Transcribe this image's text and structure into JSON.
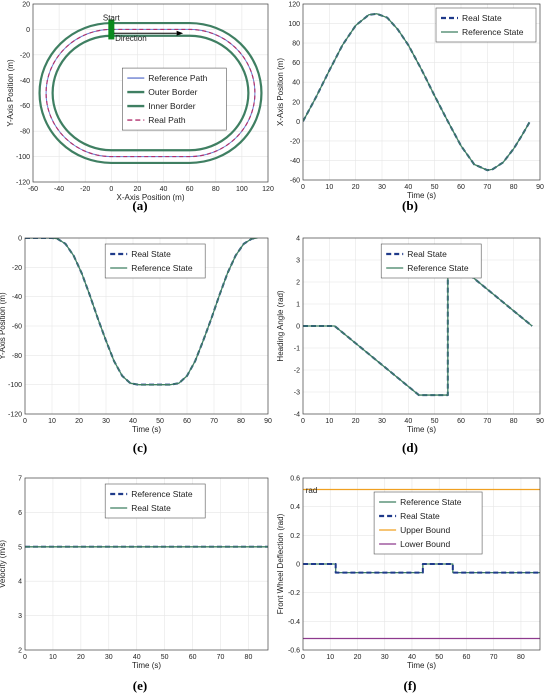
{
  "colors": {
    "real": "#1f3a8a",
    "reference": "#3f7f62",
    "border": "#3f7f62",
    "refpath": "#6a7fd0",
    "realpath": "#b0306e",
    "upper": "#f0a020",
    "lower": "#8e3a8e",
    "start": "#0a8a1e"
  },
  "chart_data": [
    {
      "id": "a",
      "type": "line",
      "panel_label": "(a)",
      "xlabel": "X-Axis Position (m)",
      "ylabel": "Y-Axis Position (m)",
      "xlim": [
        -60,
        120
      ],
      "ylim": [
        -120,
        20
      ],
      "xticks": [
        -60,
        -40,
        -20,
        0,
        20,
        40,
        60,
        80,
        100,
        120
      ],
      "yticks": [
        -120,
        -100,
        -80,
        -60,
        -40,
        -20,
        0,
        20
      ],
      "grid": true,
      "legend_position": "center",
      "annotations": [
        {
          "text": "Start",
          "x": 0,
          "y": 7
        },
        {
          "text": "Direction",
          "x": 15,
          "y": -9
        }
      ],
      "track": {
        "center_radius": 50,
        "outer_radius": 55,
        "inner_radius": 45,
        "straight_x": [
          0,
          60
        ],
        "center_y": -50
      },
      "series": [
        {
          "name": "Reference Path",
          "style": "solid",
          "color_key": "refpath"
        },
        {
          "name": "Outer Border",
          "style": "solid",
          "color_key": "border"
        },
        {
          "name": "Inner Border",
          "style": "solid",
          "color_key": "border"
        },
        {
          "name": "Real Path",
          "style": "dashed",
          "color_key": "realpath"
        }
      ]
    },
    {
      "id": "b",
      "type": "line",
      "panel_label": "(b)",
      "xlabel": "Time (s)",
      "ylabel": "X-Axis Position (m)",
      "xlim": [
        0,
        90
      ],
      "ylim": [
        -60,
        120
      ],
      "xticks": [
        0,
        10,
        20,
        30,
        40,
        50,
        60,
        70,
        80,
        90
      ],
      "yticks": [
        -60,
        -40,
        -20,
        0,
        20,
        40,
        60,
        80,
        100,
        120
      ],
      "grid": true,
      "legend_position": "top-right",
      "series": [
        {
          "name": "Real State",
          "style": "dashed",
          "color_key": "real",
          "x": [
            0,
            5,
            10,
            15,
            20,
            25,
            28,
            32,
            36,
            40,
            45,
            50,
            55,
            60,
            65,
            70,
            72,
            76,
            80,
            83,
            86
          ],
          "y": [
            0,
            25,
            52,
            78,
            98,
            109,
            110,
            106,
            94,
            78,
            53,
            26,
            0,
            -25,
            -44,
            -50,
            -49,
            -42,
            -28,
            -15,
            -1
          ]
        },
        {
          "name": "Reference State",
          "style": "solid",
          "color_key": "reference",
          "x": [
            0,
            5,
            10,
            15,
            20,
            25,
            28,
            32,
            36,
            40,
            45,
            50,
            55,
            60,
            65,
            70,
            72,
            76,
            80,
            83,
            86
          ],
          "y": [
            0,
            25,
            52,
            78,
            98,
            109,
            110,
            106,
            94,
            78,
            53,
            26,
            0,
            -25,
            -44,
            -50,
            -49,
            -42,
            -28,
            -15,
            -1
          ]
        }
      ]
    },
    {
      "id": "c",
      "type": "line",
      "panel_label": "(c)",
      "xlabel": "Time (s)",
      "ylabel": "Y-Axis Position (m)",
      "xlim": [
        0,
        90
      ],
      "ylim": [
        -120,
        0
      ],
      "xticks": [
        0,
        10,
        20,
        30,
        40,
        50,
        60,
        70,
        80,
        90
      ],
      "yticks": [
        -120,
        -100,
        -80,
        -60,
        -40,
        -20,
        0
      ],
      "grid": true,
      "legend_position": "top-center",
      "series": [
        {
          "name": "Real State",
          "style": "dashed",
          "color_key": "real",
          "x": [
            0,
            5,
            10,
            12,
            15,
            18,
            21,
            24,
            27,
            30,
            33,
            36,
            39,
            42,
            45,
            50,
            54,
            57,
            60,
            63,
            66,
            69,
            72,
            75,
            78,
            81,
            84,
            86
          ],
          "y": [
            0,
            0,
            0,
            -0.5,
            -4,
            -12,
            -24,
            -39,
            -55,
            -70,
            -84,
            -94,
            -99,
            -100,
            -100,
            -100,
            -100,
            -99,
            -94,
            -84,
            -70,
            -55,
            -39,
            -24,
            -12,
            -4,
            -0.5,
            0
          ]
        },
        {
          "name": "Reference State",
          "style": "solid",
          "color_key": "reference",
          "x": [
            0,
            5,
            10,
            12,
            15,
            18,
            21,
            24,
            27,
            30,
            33,
            36,
            39,
            42,
            45,
            50,
            54,
            57,
            60,
            63,
            66,
            69,
            72,
            75,
            78,
            81,
            84,
            86
          ],
          "y": [
            0,
            0,
            0,
            -0.5,
            -4,
            -12,
            -24,
            -39,
            -55,
            -70,
            -84,
            -94,
            -99,
            -100,
            -100,
            -100,
            -100,
            -99,
            -94,
            -84,
            -70,
            -55,
            -39,
            -24,
            -12,
            -4,
            -0.5,
            0
          ]
        }
      ]
    },
    {
      "id": "d",
      "type": "line",
      "panel_label": "(d)",
      "xlabel": "Time (s)",
      "ylabel": "Heading Angle (rad)",
      "xlim": [
        0,
        90
      ],
      "ylim": [
        -4,
        4
      ],
      "xticks": [
        0,
        10,
        20,
        30,
        40,
        50,
        60,
        70,
        80,
        90
      ],
      "yticks": [
        -4,
        -3,
        -2,
        -1,
        0,
        1,
        2,
        3,
        4
      ],
      "grid": true,
      "legend_position": "top-center",
      "series": [
        {
          "name": "Real State",
          "style": "dashed",
          "color_key": "real",
          "x": [
            0,
            12,
            44,
            55,
            55,
            87
          ],
          "y": [
            0,
            0,
            -3.14,
            -3.14,
            3.14,
            0
          ]
        },
        {
          "name": "Reference State",
          "style": "solid",
          "color_key": "reference",
          "x": [
            0,
            12,
            44,
            55,
            55,
            87
          ],
          "y": [
            0,
            0,
            -3.14,
            -3.14,
            3.14,
            0
          ]
        }
      ]
    },
    {
      "id": "e",
      "type": "line",
      "panel_label": "(e)",
      "xlabel": "Time (s)",
      "ylabel": "Velocity (m/s)",
      "xlim": [
        0,
        87
      ],
      "ylim": [
        2,
        7
      ],
      "xticks": [
        0,
        10,
        20,
        30,
        40,
        50,
        60,
        70,
        80
      ],
      "yticks": [
        2,
        3,
        4,
        5,
        6,
        7
      ],
      "grid": true,
      "legend_position": "top-center",
      "series": [
        {
          "name": "Reference State",
          "style": "dashed",
          "color_key": "real",
          "x": [
            0,
            87
          ],
          "y": [
            5,
            5
          ]
        },
        {
          "name": "Real State",
          "style": "solid",
          "color_key": "reference",
          "x": [
            0,
            87
          ],
          "y": [
            5,
            5
          ]
        }
      ]
    },
    {
      "id": "f",
      "type": "line",
      "panel_label": "(f)",
      "xlabel": "Time (s)",
      "ylabel": "Front Wheel Deflection (rad)",
      "xlim": [
        0,
        87
      ],
      "ylim": [
        -0.6,
        0.6
      ],
      "xticks": [
        0,
        10,
        20,
        30,
        40,
        50,
        60,
        70,
        80
      ],
      "yticks": [
        -0.6,
        -0.4,
        -0.2,
        0,
        0.2,
        0.4,
        0.6
      ],
      "grid": true,
      "legend_position": "top-center",
      "annotations": [
        {
          "text": "rad",
          "x": 1,
          "y": 0.495
        }
      ],
      "series": [
        {
          "name": "Reference State",
          "style": "solid",
          "color_key": "reference",
          "x": [
            0,
            12,
            12,
            44,
            44,
            55,
            55,
            87
          ],
          "y": [
            0,
            0,
            -0.06,
            -0.06,
            0,
            0,
            -0.06,
            -0.06
          ]
        },
        {
          "name": "Real State",
          "style": "dashed",
          "color_key": "real",
          "x": [
            0,
            12,
            12,
            44,
            44,
            55,
            55,
            87
          ],
          "y": [
            0,
            0,
            -0.06,
            -0.06,
            0,
            0,
            -0.06,
            -0.06
          ]
        },
        {
          "name": "Upper Bound",
          "style": "solid",
          "color_key": "upper",
          "x": [
            0,
            87
          ],
          "y": [
            0.52,
            0.52
          ]
        },
        {
          "name": "Lower Bound",
          "style": "solid",
          "color_key": "lower",
          "x": [
            0,
            87
          ],
          "y": [
            -0.52,
            -0.52
          ]
        }
      ]
    }
  ]
}
